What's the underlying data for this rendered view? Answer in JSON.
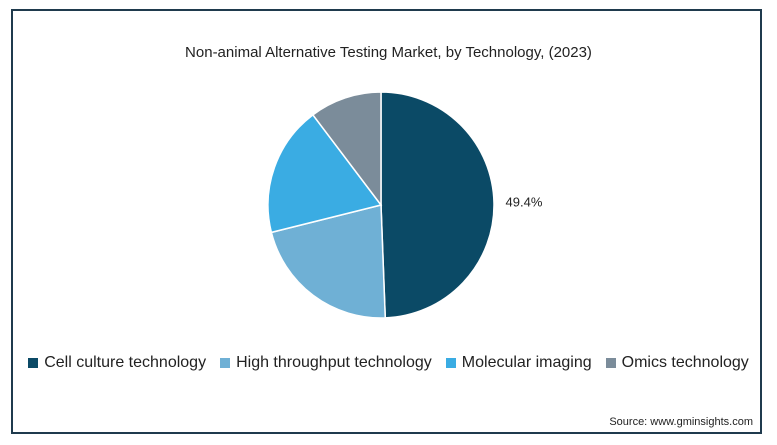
{
  "title": "Non-animal Alternative Testing Market, by Technology, (2023)",
  "source": "Source: www.gminsights.com",
  "chart_data": {
    "type": "pie",
    "title": "Non-animal Alternative Testing Market, by Technology, (2023)",
    "categories": [
      "Cell culture technology",
      "High throughput technology",
      "Molecular imaging",
      "Omics technology"
    ],
    "values": [
      49.4,
      21.7,
      18.6,
      10.3
    ],
    "colors": [
      "#0b4a66",
      "#6fb0d5",
      "#3aace3",
      "#7b8c9a"
    ],
    "data_labels": [
      "49.4%",
      "",
      "",
      ""
    ],
    "legend_position": "bottom"
  }
}
